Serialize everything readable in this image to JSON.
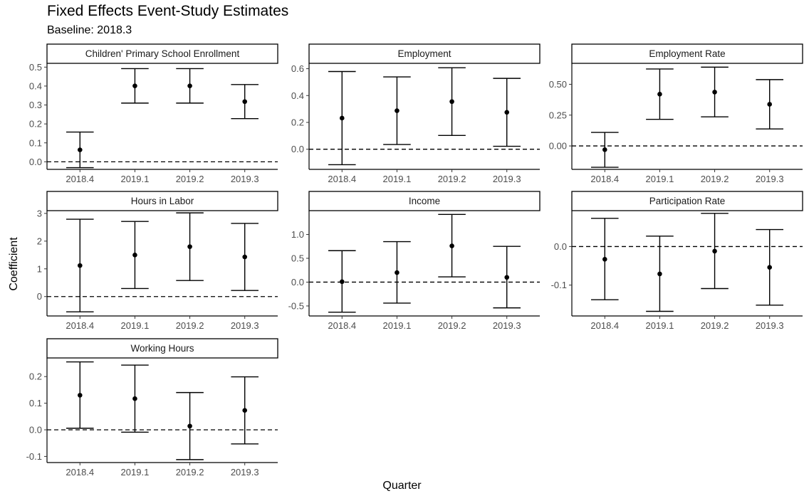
{
  "chart_data": {
    "type": "scatter",
    "title": "Fixed Effects Event-Study Estimates",
    "subtitle": "Baseline: 2018.3",
    "xlabel": "Quarter",
    "ylabel": "Coefficient",
    "categories": [
      "2018.4",
      "2019.1",
      "2019.2",
      "2019.3"
    ],
    "reference_line": 0,
    "panels": [
      {
        "name": "Children' Primary School Enrollment",
        "ylim": [
          -0.04,
          0.52
        ],
        "yticks": [
          0.0,
          0.1,
          0.2,
          0.3,
          0.4,
          0.5
        ],
        "tick_labels": [
          "0.0",
          "0.1",
          "0.2",
          "0.3",
          "0.4",
          "0.5"
        ],
        "estimates": [
          0.063,
          0.401,
          0.401,
          0.318
        ],
        "lower": [
          -0.031,
          0.31,
          0.31,
          0.228
        ],
        "upper": [
          0.157,
          0.492,
          0.492,
          0.408
        ]
      },
      {
        "name": "Employment",
        "ylim": [
          -0.15,
          0.64
        ],
        "yticks": [
          0.0,
          0.2,
          0.4,
          0.6
        ],
        "tick_labels": [
          "0.0",
          "0.2",
          "0.4",
          "0.6"
        ],
        "estimates": [
          0.232,
          0.287,
          0.355,
          0.275
        ],
        "lower": [
          -0.115,
          0.035,
          0.103,
          0.022
        ],
        "upper": [
          0.579,
          0.539,
          0.607,
          0.528
        ]
      },
      {
        "name": "Employment Rate",
        "ylim": [
          -0.19,
          0.67
        ],
        "yticks": [
          0.0,
          0.25,
          0.5
        ],
        "tick_labels": [
          "0.00",
          "0.25",
          "0.50"
        ],
        "estimates": [
          -0.03,
          0.42,
          0.437,
          0.338
        ],
        "lower": [
          -0.173,
          0.216,
          0.236,
          0.138
        ],
        "upper": [
          0.11,
          0.624,
          0.639,
          0.538
        ]
      },
      {
        "name": "Hours in Labor",
        "ylim": [
          -0.7,
          3.1
        ],
        "yticks": [
          0,
          1,
          2,
          3
        ],
        "tick_labels": [
          "0",
          "1",
          "2",
          "3"
        ],
        "estimates": [
          1.12,
          1.5,
          1.8,
          1.43
        ],
        "lower": [
          -0.55,
          0.29,
          0.58,
          0.22
        ],
        "upper": [
          2.79,
          2.71,
          3.02,
          2.64
        ]
      },
      {
        "name": "Income",
        "ylim": [
          -0.71,
          1.5
        ],
        "yticks": [
          -0.5,
          0.0,
          0.5,
          1.0
        ],
        "tick_labels": [
          "-0.5",
          "0.0",
          "0.5",
          "1.0"
        ],
        "estimates": [
          0.01,
          0.2,
          0.76,
          0.1
        ],
        "lower": [
          -0.63,
          -0.44,
          0.11,
          -0.54
        ],
        "upper": [
          0.66,
          0.85,
          1.42,
          0.75
        ]
      },
      {
        "name": "Participation Rate",
        "ylim": [
          -0.18,
          0.093
        ],
        "yticks": [
          -0.1,
          0.0
        ],
        "tick_labels": [
          "-0.1",
          "0.0"
        ],
        "estimates": [
          -0.033,
          -0.071,
          -0.012,
          -0.054
        ],
        "lower": [
          -0.138,
          -0.168,
          -0.109,
          -0.152
        ],
        "upper": [
          0.073,
          0.027,
          0.086,
          0.044
        ]
      },
      {
        "name": "Working Hours",
        "ylim": [
          -0.123,
          0.27
        ],
        "yticks": [
          -0.1,
          0.0,
          0.1,
          0.2
        ],
        "tick_labels": [
          "-0.1",
          "0.0",
          "0.1",
          "0.2"
        ],
        "estimates": [
          0.13,
          0.117,
          0.014,
          0.073
        ],
        "lower": [
          0.006,
          -0.009,
          -0.112,
          -0.053
        ],
        "upper": [
          0.255,
          0.243,
          0.14,
          0.199
        ]
      }
    ]
  }
}
